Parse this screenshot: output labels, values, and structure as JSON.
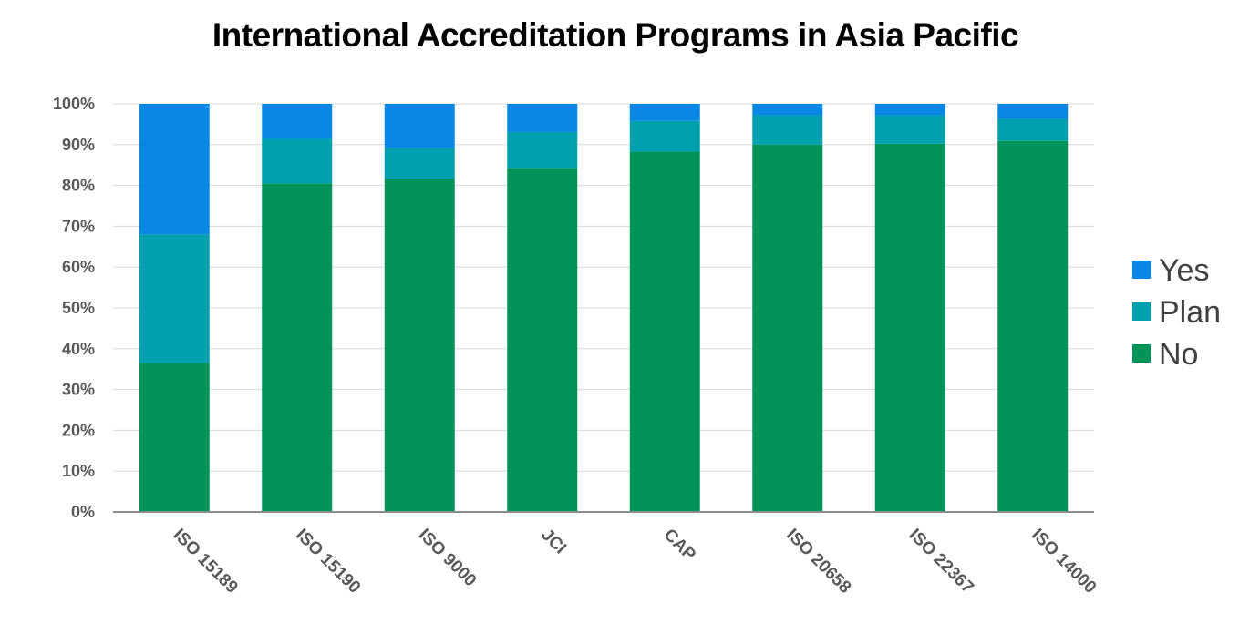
{
  "chart_data": {
    "type": "bar",
    "stacked": true,
    "percent": true,
    "title": "International Accreditation Programs in Asia Pacific",
    "categories": [
      "ISO 15189",
      "ISO 15190",
      "ISO 9000",
      "JCI",
      "CAP",
      "ISO 20658",
      "ISO 22367",
      "ISO 14000"
    ],
    "series": [
      {
        "name": "No",
        "color": "#00945B",
        "values": [
          36.5,
          80.5,
          81.7,
          84.3,
          88.3,
          90.0,
          90.2,
          90.9
        ]
      },
      {
        "name": "Plan",
        "color": "#00A0AE",
        "values": [
          31.5,
          10.9,
          7.5,
          8.8,
          7.5,
          7.2,
          7.0,
          5.4
        ]
      },
      {
        "name": "Yes",
        "color": "#0888E3",
        "values": [
          32.0,
          8.6,
          10.8,
          6.9,
          4.2,
          2.8,
          2.8,
          3.7
        ]
      }
    ],
    "yticks": [
      "0%",
      "10%",
      "20%",
      "30%",
      "40%",
      "50%",
      "60%",
      "70%",
      "80%",
      "90%",
      "100%"
    ],
    "ylim": [
      0,
      100
    ],
    "grid": true,
    "legend": {
      "position": "right",
      "order": [
        "Yes",
        "Plan",
        "No"
      ]
    }
  }
}
